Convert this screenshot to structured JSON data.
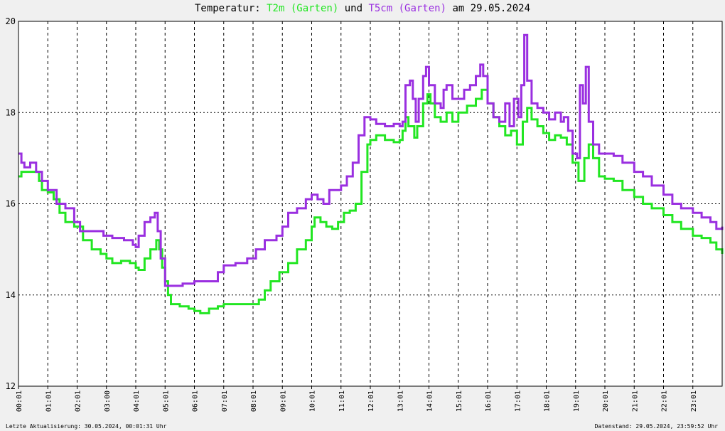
{
  "title": {
    "prefix": "Temperatur: ",
    "series1": "T2m (Garten)",
    "mid": " und ",
    "series2": "T5cm (Garten)",
    "suffix": " am 29.05.2024"
  },
  "footer": {
    "left": "Letzte Aktualisierung: 30.05.2024, 00:01:31 Uhr",
    "right": "Datenstand: 29.05.2024, 23:59:52 Uhr"
  },
  "colors": {
    "background": "#f0f0f0",
    "plot_background": "#ffffff",
    "t2m": "#22e622",
    "t5cm": "#9a2fe0",
    "grid": "#000000"
  },
  "chart_data": {
    "type": "line",
    "title": "Temperatur: T2m (Garten) und T5cm (Garten) am 29.05.2024",
    "xlabel": "",
    "ylabel": "",
    "xlim": [
      0,
      24
    ],
    "ylim": [
      12,
      20
    ],
    "yticks": [
      12,
      14,
      16,
      18,
      20
    ],
    "xticks": [
      {
        "pos": 0.0,
        "label": "00:01"
      },
      {
        "pos": 1.0,
        "label": "01:01"
      },
      {
        "pos": 2.0,
        "label": "02:01"
      },
      {
        "pos": 3.0,
        "label": "03:00"
      },
      {
        "pos": 4.0,
        "label": "04:01"
      },
      {
        "pos": 5.0,
        "label": "05:01"
      },
      {
        "pos": 6.0,
        "label": "06:01"
      },
      {
        "pos": 7.0,
        "label": "07:01"
      },
      {
        "pos": 8.0,
        "label": "08:01"
      },
      {
        "pos": 9.0,
        "label": "09:01"
      },
      {
        "pos": 10.0,
        "label": "10:01"
      },
      {
        "pos": 11.0,
        "label": "11:01"
      },
      {
        "pos": 12.0,
        "label": "12:01"
      },
      {
        "pos": 13.0,
        "label": "13:01"
      },
      {
        "pos": 14.0,
        "label": "14:01"
      },
      {
        "pos": 15.0,
        "label": "15:01"
      },
      {
        "pos": 16.0,
        "label": "16:01"
      },
      {
        "pos": 17.0,
        "label": "17:01"
      },
      {
        "pos": 18.0,
        "label": "18:01"
      },
      {
        "pos": 19.0,
        "label": "19:01"
      },
      {
        "pos": 20.0,
        "label": "20:01"
      },
      {
        "pos": 21.0,
        "label": "21:01"
      },
      {
        "pos": 22.0,
        "label": "22:01"
      },
      {
        "pos": 23.0,
        "label": "23:01"
      }
    ],
    "grid": true,
    "series": [
      {
        "name": "T2m (Garten)",
        "color": "#22e622",
        "points": [
          [
            0.0,
            16.6
          ],
          [
            0.1,
            16.7
          ],
          [
            0.5,
            16.7
          ],
          [
            0.7,
            16.5
          ],
          [
            0.8,
            16.3
          ],
          [
            1.0,
            16.25
          ],
          [
            1.2,
            16.1
          ],
          [
            1.4,
            15.8
          ],
          [
            1.6,
            15.6
          ],
          [
            1.9,
            15.5
          ],
          [
            2.2,
            15.2
          ],
          [
            2.5,
            15.0
          ],
          [
            2.8,
            14.9
          ],
          [
            3.0,
            14.8
          ],
          [
            3.2,
            14.7
          ],
          [
            3.5,
            14.75
          ],
          [
            3.8,
            14.7
          ],
          [
            4.0,
            14.6
          ],
          [
            4.1,
            14.55
          ],
          [
            4.3,
            14.8
          ],
          [
            4.5,
            15.0
          ],
          [
            4.7,
            15.2
          ],
          [
            4.8,
            15.0
          ],
          [
            4.9,
            14.6
          ],
          [
            5.0,
            14.3
          ],
          [
            5.1,
            14.0
          ],
          [
            5.2,
            13.8
          ],
          [
            5.5,
            13.75
          ],
          [
            5.8,
            13.7
          ],
          [
            6.0,
            13.65
          ],
          [
            6.2,
            13.6
          ],
          [
            6.5,
            13.7
          ],
          [
            6.8,
            13.75
          ],
          [
            7.0,
            13.8
          ],
          [
            7.5,
            13.8
          ],
          [
            7.8,
            13.8
          ],
          [
            8.0,
            13.8
          ],
          [
            8.2,
            13.9
          ],
          [
            8.4,
            14.1
          ],
          [
            8.6,
            14.3
          ],
          [
            8.9,
            14.5
          ],
          [
            9.2,
            14.7
          ],
          [
            9.5,
            15.0
          ],
          [
            9.8,
            15.2
          ],
          [
            10.0,
            15.5
          ],
          [
            10.1,
            15.7
          ],
          [
            10.3,
            15.6
          ],
          [
            10.5,
            15.5
          ],
          [
            10.7,
            15.45
          ],
          [
            10.9,
            15.6
          ],
          [
            11.1,
            15.8
          ],
          [
            11.3,
            15.85
          ],
          [
            11.5,
            16.0
          ],
          [
            11.7,
            16.7
          ],
          [
            11.9,
            17.3
          ],
          [
            12.0,
            17.4
          ],
          [
            12.2,
            17.5
          ],
          [
            12.5,
            17.4
          ],
          [
            12.8,
            17.35
          ],
          [
            13.0,
            17.4
          ],
          [
            13.1,
            17.6
          ],
          [
            13.2,
            17.9
          ],
          [
            13.3,
            17.7
          ],
          [
            13.5,
            17.45
          ],
          [
            13.6,
            17.7
          ],
          [
            13.8,
            18.2
          ],
          [
            13.95,
            18.4
          ],
          [
            14.05,
            18.2
          ],
          [
            14.2,
            17.9
          ],
          [
            14.4,
            17.8
          ],
          [
            14.6,
            18.0
          ],
          [
            14.8,
            17.8
          ],
          [
            15.0,
            18.0
          ],
          [
            15.3,
            18.15
          ],
          [
            15.6,
            18.3
          ],
          [
            15.8,
            18.5
          ],
          [
            16.0,
            18.2
          ],
          [
            16.2,
            17.9
          ],
          [
            16.4,
            17.7
          ],
          [
            16.6,
            17.5
          ],
          [
            16.8,
            17.6
          ],
          [
            17.0,
            17.3
          ],
          [
            17.2,
            17.8
          ],
          [
            17.35,
            18.1
          ],
          [
            17.5,
            17.85
          ],
          [
            17.7,
            17.7
          ],
          [
            17.9,
            17.55
          ],
          [
            18.1,
            17.4
          ],
          [
            18.3,
            17.5
          ],
          [
            18.5,
            17.45
          ],
          [
            18.7,
            17.3
          ],
          [
            18.9,
            16.9
          ],
          [
            19.1,
            16.5
          ],
          [
            19.3,
            17.0
          ],
          [
            19.45,
            17.3
          ],
          [
            19.6,
            17.0
          ],
          [
            19.8,
            16.6
          ],
          [
            20.0,
            16.55
          ],
          [
            20.3,
            16.5
          ],
          [
            20.6,
            16.3
          ],
          [
            21.0,
            16.15
          ],
          [
            21.3,
            16.0
          ],
          [
            21.6,
            15.9
          ],
          [
            22.0,
            15.75
          ],
          [
            22.3,
            15.6
          ],
          [
            22.6,
            15.45
          ],
          [
            23.0,
            15.3
          ],
          [
            23.3,
            15.25
          ],
          [
            23.6,
            15.15
          ],
          [
            23.8,
            15.0
          ],
          [
            24.0,
            14.9
          ]
        ]
      },
      {
        "name": "T5cm (Garten)",
        "color": "#9a2fe0",
        "points": [
          [
            0.0,
            17.1
          ],
          [
            0.1,
            16.9
          ],
          [
            0.2,
            16.8
          ],
          [
            0.4,
            16.9
          ],
          [
            0.6,
            16.7
          ],
          [
            0.8,
            16.5
          ],
          [
            1.0,
            16.3
          ],
          [
            1.3,
            16.0
          ],
          [
            1.6,
            15.9
          ],
          [
            1.9,
            15.6
          ],
          [
            2.1,
            15.4
          ],
          [
            2.5,
            15.4
          ],
          [
            2.9,
            15.3
          ],
          [
            3.2,
            15.25
          ],
          [
            3.6,
            15.2
          ],
          [
            3.9,
            15.1
          ],
          [
            4.0,
            15.05
          ],
          [
            4.1,
            15.3
          ],
          [
            4.3,
            15.6
          ],
          [
            4.5,
            15.7
          ],
          [
            4.65,
            15.8
          ],
          [
            4.75,
            15.4
          ],
          [
            4.85,
            14.8
          ],
          [
            5.0,
            14.2
          ],
          [
            5.3,
            14.2
          ],
          [
            5.6,
            14.25
          ],
          [
            6.0,
            14.3
          ],
          [
            6.5,
            14.3
          ],
          [
            6.8,
            14.5
          ],
          [
            7.0,
            14.65
          ],
          [
            7.4,
            14.7
          ],
          [
            7.8,
            14.8
          ],
          [
            8.1,
            15.0
          ],
          [
            8.4,
            15.2
          ],
          [
            8.8,
            15.3
          ],
          [
            9.0,
            15.5
          ],
          [
            9.2,
            15.8
          ],
          [
            9.5,
            15.9
          ],
          [
            9.8,
            16.1
          ],
          [
            10.0,
            16.2
          ],
          [
            10.2,
            16.1
          ],
          [
            10.4,
            16.0
          ],
          [
            10.6,
            16.3
          ],
          [
            11.0,
            16.4
          ],
          [
            11.2,
            16.6
          ],
          [
            11.4,
            16.9
          ],
          [
            11.6,
            17.5
          ],
          [
            11.8,
            17.9
          ],
          [
            12.0,
            17.85
          ],
          [
            12.2,
            17.75
          ],
          [
            12.5,
            17.7
          ],
          [
            12.8,
            17.75
          ],
          [
            13.0,
            17.7
          ],
          [
            13.1,
            17.8
          ],
          [
            13.2,
            18.6
          ],
          [
            13.35,
            18.7
          ],
          [
            13.45,
            18.3
          ],
          [
            13.55,
            17.8
          ],
          [
            13.65,
            18.3
          ],
          [
            13.8,
            18.8
          ],
          [
            13.9,
            19.0
          ],
          [
            14.0,
            18.6
          ],
          [
            14.2,
            18.2
          ],
          [
            14.4,
            18.1
          ],
          [
            14.5,
            18.5
          ],
          [
            14.6,
            18.6
          ],
          [
            14.8,
            18.3
          ],
          [
            15.0,
            18.3
          ],
          [
            15.2,
            18.5
          ],
          [
            15.4,
            18.6
          ],
          [
            15.6,
            18.8
          ],
          [
            15.75,
            19.05
          ],
          [
            15.85,
            18.8
          ],
          [
            16.0,
            18.2
          ],
          [
            16.2,
            17.9
          ],
          [
            16.4,
            17.8
          ],
          [
            16.6,
            18.2
          ],
          [
            16.75,
            17.7
          ],
          [
            16.9,
            18.3
          ],
          [
            17.05,
            17.9
          ],
          [
            17.15,
            18.6
          ],
          [
            17.25,
            19.7
          ],
          [
            17.35,
            18.7
          ],
          [
            17.5,
            18.2
          ],
          [
            17.7,
            18.1
          ],
          [
            17.9,
            18.0
          ],
          [
            18.1,
            17.85
          ],
          [
            18.3,
            18.0
          ],
          [
            18.5,
            17.8
          ],
          [
            18.6,
            17.9
          ],
          [
            18.75,
            17.6
          ],
          [
            18.9,
            17.1
          ],
          [
            19.05,
            17.0
          ],
          [
            19.15,
            18.6
          ],
          [
            19.25,
            18.2
          ],
          [
            19.35,
            19.0
          ],
          [
            19.45,
            17.8
          ],
          [
            19.6,
            17.3
          ],
          [
            19.8,
            17.1
          ],
          [
            20.0,
            17.1
          ],
          [
            20.3,
            17.05
          ],
          [
            20.6,
            16.9
          ],
          [
            21.0,
            16.7
          ],
          [
            21.3,
            16.6
          ],
          [
            21.6,
            16.4
          ],
          [
            22.0,
            16.2
          ],
          [
            22.3,
            16.0
          ],
          [
            22.6,
            15.9
          ],
          [
            23.0,
            15.8
          ],
          [
            23.3,
            15.7
          ],
          [
            23.6,
            15.6
          ],
          [
            23.8,
            15.45
          ],
          [
            24.0,
            15.5
          ]
        ]
      }
    ]
  }
}
